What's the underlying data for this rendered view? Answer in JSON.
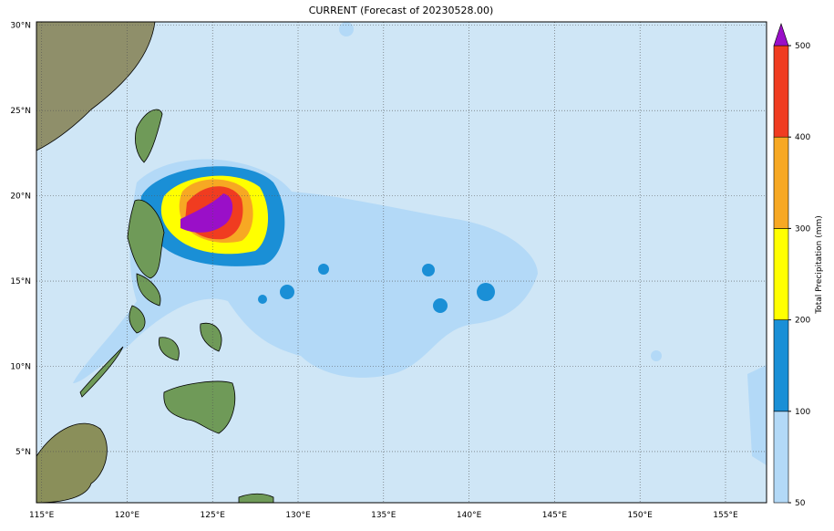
{
  "title": "CURRENT (Forecast of 20230528.00)",
  "map": {
    "xlim": [
      114.7,
      157.4
    ],
    "ylim": [
      2.0,
      30.2
    ],
    "lon_ticks": [
      {
        "value": 115,
        "label": "115°E"
      },
      {
        "value": 120,
        "label": "120°E"
      },
      {
        "value": 125,
        "label": "125°E"
      },
      {
        "value": 130,
        "label": "130°E"
      },
      {
        "value": 135,
        "label": "135°E"
      },
      {
        "value": 140,
        "label": "140°E"
      },
      {
        "value": 145,
        "label": "145°E"
      },
      {
        "value": 150,
        "label": "150°E"
      },
      {
        "value": 155,
        "label": "155°E"
      }
    ],
    "lat_ticks": [
      {
        "value": 5,
        "label": "5°N"
      },
      {
        "value": 10,
        "label": "10°N"
      },
      {
        "value": 15,
        "label": "15°N"
      },
      {
        "value": 20,
        "label": "20°N"
      },
      {
        "value": 25,
        "label": "25°N"
      },
      {
        "value": 30,
        "label": "30°N"
      }
    ]
  },
  "colorbar": {
    "label": "Total Precipitation (mm)",
    "levels": [
      50,
      100,
      200,
      300,
      400,
      500
    ],
    "colors": [
      "#b3d9f7",
      "#1a8fd6",
      "#ffff00",
      "#f7a823",
      "#f03c20"
    ],
    "extend_color": "#9a0fc8"
  }
}
